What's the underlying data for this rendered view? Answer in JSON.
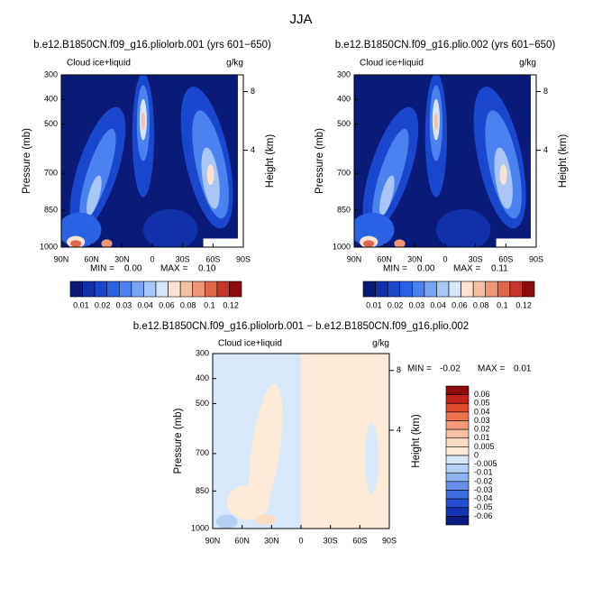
{
  "title": "JJA",
  "chart_data": [
    {
      "type": "contour",
      "title": "b.e12.B1850CN.f09_g16.pliolorb.001 (yrs 601−650)",
      "variable": "Cloud ice+liquid",
      "units": "g/kg",
      "ylabel": "Pressure (mb)",
      "y2label": "Height (km)",
      "xlim": [
        90,
        -90
      ],
      "xticks": [
        {
          "value": 90,
          "label": "90N"
        },
        {
          "value": 60,
          "label": "60N"
        },
        {
          "value": 30,
          "label": "30N"
        },
        0,
        {
          "value": -30,
          "label": "30S"
        },
        {
          "value": -60,
          "label": "60S"
        },
        {
          "value": -90,
          "label": "90S"
        }
      ],
      "ylim": [
        1000,
        300
      ],
      "yticks": [
        300,
        400,
        500,
        700,
        850,
        1000
      ],
      "y2ticks": [
        8,
        4
      ],
      "stats": {
        "min_label": "MIN =",
        "min": "0.00",
        "max_label": "MAX =",
        "max": "0.10"
      },
      "colorbar": {
        "orientation": "horizontal",
        "colors": [
          "#0a1a78",
          "#1030a8",
          "#1a48cc",
          "#2a62e4",
          "#4a82f0",
          "#78a4f4",
          "#a8c6f6",
          "#d6e6f8",
          "#fce2d0",
          "#f6bea2",
          "#ee9676",
          "#e0664a",
          "#c4362a",
          "#8c0a0a"
        ],
        "ticks": [
          0.01,
          0.02,
          0.03,
          0.04,
          0.06,
          0.08,
          0.1,
          0.12
        ]
      }
    },
    {
      "type": "contour",
      "title": "b.e12.B1850CN.f09_g16.plio.002 (yrs 601−650)",
      "variable": "Cloud ice+liquid",
      "units": "g/kg",
      "ylabel": "Pressure (mb)",
      "y2label": "Height (km)",
      "xlim": [
        90,
        -90
      ],
      "xticks": [
        {
          "value": 90,
          "label": "90N"
        },
        {
          "value": 60,
          "label": "60N"
        },
        {
          "value": 30,
          "label": "30N"
        },
        0,
        {
          "value": -30,
          "label": "30S"
        },
        {
          "value": -60,
          "label": "60S"
        },
        {
          "value": -90,
          "label": "90S"
        }
      ],
      "ylim": [
        1000,
        300
      ],
      "yticks": [
        300,
        400,
        500,
        700,
        850,
        1000
      ],
      "y2ticks": [
        8,
        4
      ],
      "stats": {
        "min_label": "MIN =",
        "min": "0.00",
        "max_label": "MAX =",
        "max": "0.11"
      },
      "colorbar": {
        "orientation": "horizontal",
        "colors": [
          "#0a1a78",
          "#1030a8",
          "#1a48cc",
          "#2a62e4",
          "#4a82f0",
          "#78a4f4",
          "#a8c6f6",
          "#d6e6f8",
          "#fce2d0",
          "#f6bea2",
          "#ee9676",
          "#e0664a",
          "#c4362a",
          "#8c0a0a"
        ],
        "ticks": [
          0.01,
          0.02,
          0.03,
          0.04,
          0.06,
          0.08,
          0.1,
          0.12
        ]
      }
    },
    {
      "type": "contour",
      "title": "b.e12.B1850CN.f09_g16.pliolorb.001 − b.e12.B1850CN.f09_g16.plio.002",
      "variable": "Cloud ice+liquid",
      "units": "g/kg",
      "ylabel": "Pressure (mb)",
      "y2label": "Height (km)",
      "xlim": [
        90,
        -90
      ],
      "xticks": [
        {
          "value": 90,
          "label": "90N"
        },
        {
          "value": 60,
          "label": "60N"
        },
        {
          "value": 30,
          "label": "30N"
        },
        0,
        {
          "value": -30,
          "label": "30S"
        },
        {
          "value": -60,
          "label": "60S"
        },
        {
          "value": -90,
          "label": "90S"
        }
      ],
      "ylim": [
        1000,
        300
      ],
      "yticks": [
        300,
        400,
        500,
        700,
        850,
        1000
      ],
      "y2ticks": [
        8,
        4
      ],
      "stats": {
        "min_label": "MIN =",
        "min": "-0.02",
        "max_label": "MAX =",
        "max": "0.01"
      },
      "colorbar": {
        "orientation": "vertical",
        "colors": [
          "#8c0a0a",
          "#c4221a",
          "#e04a2a",
          "#ee7450",
          "#f49a78",
          "#f8bea2",
          "#fcdcc6",
          "#fcead8",
          "#d8e8f8",
          "#b6d0f4",
          "#8eb2f0",
          "#6890ea",
          "#3e6ce2",
          "#2450d0",
          "#1434b0",
          "#0a1a80"
        ],
        "ticks": [
          0.06,
          0.05,
          0.04,
          0.03,
          0.02,
          0.01,
          0.005,
          0,
          -0.005,
          -0.01,
          -0.02,
          -0.03,
          -0.04,
          -0.05,
          -0.06
        ]
      }
    }
  ]
}
